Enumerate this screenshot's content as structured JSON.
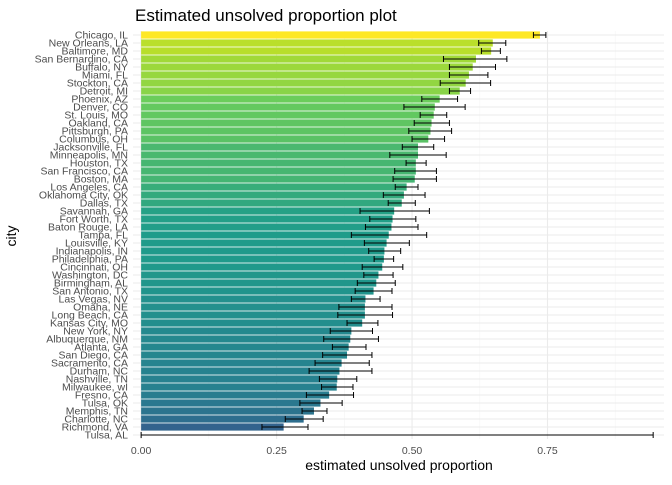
{
  "chart_data": {
    "type": "bar",
    "orientation": "horizontal",
    "title": "Estimated unsolved proportion plot",
    "xlabel": "estimated unsolved proportion",
    "ylabel": "city",
    "xlim": [
      -0.015,
      0.965
    ],
    "x_ticks": [
      0.0,
      0.25,
      0.5,
      0.75
    ],
    "x_tick_labels": [
      "0.00",
      "0.25",
      "0.50",
      "0.75"
    ],
    "grid": true,
    "legend": "none",
    "colormap": "viridis",
    "colors": {
      "bar_low": "#440154",
      "bar_high": "#fde725",
      "error_bar": "#000000",
      "grid_major": "#ebebeb",
      "grid_minor": "#f4f4f4",
      "text": "#1a1a1a",
      "tick_label": "#4d4d4d"
    },
    "bars": [
      {
        "city": "Chicago, IL",
        "estimate": 0.736,
        "lower": 0.724,
        "upper": 0.747
      },
      {
        "city": "New Orleans, LA",
        "estimate": 0.649,
        "lower": 0.623,
        "upper": 0.673
      },
      {
        "city": "Baltimore, MD",
        "estimate": 0.646,
        "lower": 0.628,
        "upper": 0.663
      },
      {
        "city": "San Bernardino, CA",
        "estimate": 0.618,
        "lower": 0.558,
        "upper": 0.675
      },
      {
        "city": "Buffalo, NY",
        "estimate": 0.612,
        "lower": 0.569,
        "upper": 0.654
      },
      {
        "city": "Miami, FL",
        "estimate": 0.605,
        "lower": 0.569,
        "upper": 0.64
      },
      {
        "city": "Stockton, CA",
        "estimate": 0.599,
        "lower": 0.552,
        "upper": 0.645
      },
      {
        "city": "Detroit, MI",
        "estimate": 0.588,
        "lower": 0.569,
        "upper": 0.608
      },
      {
        "city": "Phoenix, AZ",
        "estimate": 0.551,
        "lower": 0.518,
        "upper": 0.584
      },
      {
        "city": "Denver, CO",
        "estimate": 0.542,
        "lower": 0.485,
        "upper": 0.598
      },
      {
        "city": "St. Louis, MO",
        "estimate": 0.54,
        "lower": 0.515,
        "upper": 0.564
      },
      {
        "city": "Oakland, CA",
        "estimate": 0.536,
        "lower": 0.504,
        "upper": 0.569
      },
      {
        "city": "Pittsburgh, PA",
        "estimate": 0.534,
        "lower": 0.494,
        "upper": 0.573
      },
      {
        "city": "Columbus, OH",
        "estimate": 0.53,
        "lower": 0.5,
        "upper": 0.56
      },
      {
        "city": "Jacksonville, FL",
        "estimate": 0.511,
        "lower": 0.482,
        "upper": 0.54
      },
      {
        "city": "Minneapolis, MN",
        "estimate": 0.511,
        "lower": 0.459,
        "upper": 0.563
      },
      {
        "city": "Houston, TX",
        "estimate": 0.507,
        "lower": 0.489,
        "upper": 0.526
      },
      {
        "city": "San Francisco, CA",
        "estimate": 0.507,
        "lower": 0.468,
        "upper": 0.545
      },
      {
        "city": "Boston, MA",
        "estimate": 0.505,
        "lower": 0.465,
        "upper": 0.545
      },
      {
        "city": "Los Angeles, CA",
        "estimate": 0.49,
        "lower": 0.469,
        "upper": 0.511
      },
      {
        "city": "Oklahoma City, OK",
        "estimate": 0.485,
        "lower": 0.447,
        "upper": 0.524
      },
      {
        "city": "Dallas, TX",
        "estimate": 0.481,
        "lower": 0.456,
        "upper": 0.506
      },
      {
        "city": "Savannah, GA",
        "estimate": 0.467,
        "lower": 0.404,
        "upper": 0.532
      },
      {
        "city": "Fort Worth, TX",
        "estimate": 0.464,
        "lower": 0.422,
        "upper": 0.507
      },
      {
        "city": "Baton Rouge, LA",
        "estimate": 0.462,
        "lower": 0.414,
        "upper": 0.511
      },
      {
        "city": "Tampa, FL",
        "estimate": 0.457,
        "lower": 0.388,
        "upper": 0.527
      },
      {
        "city": "Louisville, KY",
        "estimate": 0.453,
        "lower": 0.412,
        "upper": 0.495
      },
      {
        "city": "Indianapolis, IN",
        "estimate": 0.449,
        "lower": 0.42,
        "upper": 0.479
      },
      {
        "city": "Philadelphia, PA",
        "estimate": 0.448,
        "lower": 0.43,
        "upper": 0.466
      },
      {
        "city": "Cincinnati, OH",
        "estimate": 0.445,
        "lower": 0.408,
        "upper": 0.483
      },
      {
        "city": "Washington, DC",
        "estimate": 0.438,
        "lower": 0.411,
        "upper": 0.465
      },
      {
        "city": "Birmingham, AL",
        "estimate": 0.434,
        "lower": 0.399,
        "upper": 0.469
      },
      {
        "city": "San Antonio, TX",
        "estimate": 0.429,
        "lower": 0.395,
        "upper": 0.463
      },
      {
        "city": "Las Vegas, NV",
        "estimate": 0.414,
        "lower": 0.388,
        "upper": 0.441
      },
      {
        "city": "Omaha, NE",
        "estimate": 0.413,
        "lower": 0.365,
        "upper": 0.463
      },
      {
        "city": "Long Beach, CA",
        "estimate": 0.413,
        "lower": 0.363,
        "upper": 0.464
      },
      {
        "city": "Kansas City, MO",
        "estimate": 0.408,
        "lower": 0.38,
        "upper": 0.437
      },
      {
        "city": "New York, NY",
        "estimate": 0.388,
        "lower": 0.349,
        "upper": 0.427
      },
      {
        "city": "Albuquerque, NM",
        "estimate": 0.386,
        "lower": 0.337,
        "upper": 0.438
      },
      {
        "city": "Atlanta, GA",
        "estimate": 0.383,
        "lower": 0.353,
        "upper": 0.415
      },
      {
        "city": "San Diego, CA",
        "estimate": 0.38,
        "lower": 0.335,
        "upper": 0.426
      },
      {
        "city": "Sacramento, CA",
        "estimate": 0.37,
        "lower": 0.321,
        "upper": 0.421
      },
      {
        "city": "Durham, NC",
        "estimate": 0.366,
        "lower": 0.31,
        "upper": 0.426
      },
      {
        "city": "Nashville, TN",
        "estimate": 0.362,
        "lower": 0.329,
        "upper": 0.398
      },
      {
        "city": "Milwaukee, wI",
        "estimate": 0.361,
        "lower": 0.333,
        "upper": 0.391
      },
      {
        "city": "Fresno, CA",
        "estimate": 0.347,
        "lower": 0.305,
        "upper": 0.392
      },
      {
        "city": "Tulsa, OK",
        "estimate": 0.331,
        "lower": 0.293,
        "upper": 0.371
      },
      {
        "city": "Memphis, TN",
        "estimate": 0.319,
        "lower": 0.297,
        "upper": 0.343
      },
      {
        "city": "Charlotte, NC",
        "estimate": 0.3,
        "lower": 0.266,
        "upper": 0.336
      },
      {
        "city": "Richmond, VA",
        "estimate": 0.263,
        "lower": 0.223,
        "upper": 0.308
      },
      {
        "city": "Tulsa, AL",
        "estimate": 0.0,
        "lower": 0.0,
        "upper": 0.945
      }
    ]
  }
}
